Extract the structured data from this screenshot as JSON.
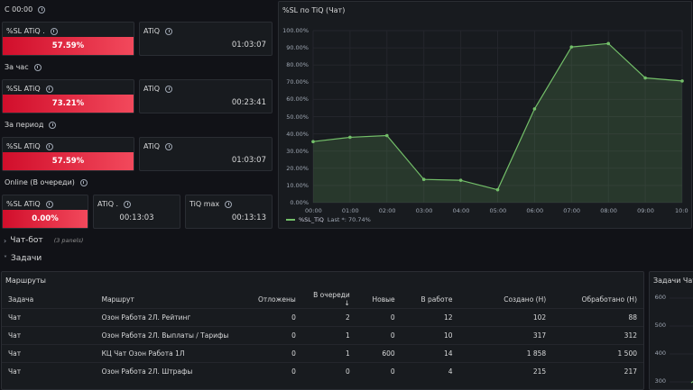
{
  "row1": {
    "title": "С 00:00",
    "sl_label": "%SL ATiQ .",
    "sl_value": "57.59%",
    "atiq_label": "ATiQ",
    "atiq_value": "01:03:07"
  },
  "row2": {
    "title": "За час",
    "sl_label": "%SL ATiQ",
    "sl_value": "73.21%",
    "atiq_label": "ATiQ",
    "atiq_value": "00:23:41"
  },
  "row3": {
    "title": "За период",
    "sl_label": "%SL ATiQ",
    "sl_value": "57.59%",
    "atiq_label": "ATiQ",
    "atiq_value": "01:03:07"
  },
  "row4": {
    "title": "Online (В очереди)",
    "sl_label": "%SL ATiQ",
    "sl_value": "0.00%",
    "atiq_label": "ATiQ .",
    "atiq_value": "00:13:03",
    "max_label": "TiQ max",
    "max_value": "00:13:13"
  },
  "chart_panel": {
    "title": "%SL по TiQ (Чат)",
    "legend": "%SL_TiQ",
    "legend_last": "Last *: 70.74%"
  },
  "chart_data": {
    "type": "area",
    "x": [
      "00:00",
      "01:00",
      "02:00",
      "03:00",
      "04:00",
      "05:00",
      "06:00",
      "07:00",
      "08:00",
      "09:00",
      "10:0"
    ],
    "y_ticks": [
      "100.00%",
      "90.00%",
      "80.00%",
      "70.00%",
      "60.00%",
      "50.00%",
      "40.00%",
      "30.00%",
      "20.00%",
      "10.00%",
      "0.00%"
    ],
    "ylim": [
      0,
      100
    ],
    "series": [
      {
        "name": "%SL_TiQ",
        "color": "#73bf69",
        "values": [
          35.5,
          38.0,
          39.0,
          13.5,
          13.0,
          7.5,
          54.5,
          90.5,
          92.5,
          72.5,
          70.74
        ]
      }
    ],
    "grid": true
  },
  "sections": {
    "chatbot": "Чат-бот",
    "chatbot_sub": "(3 panels)",
    "tasks": "Задачи"
  },
  "routes_panel": {
    "title": "Маршруты",
    "columns": [
      "Задача",
      "Маршрут",
      "Отложены",
      "В очереди",
      "Новые",
      "В работе",
      "Создано (Н)",
      "Обработано (Н)"
    ],
    "sort_icon": "↓",
    "rows": [
      [
        "Чат",
        "Озон Работа 2Л. Рейтинг",
        "0",
        "2",
        "0",
        "12",
        "102",
        "88"
      ],
      [
        "Чат",
        "Озон Работа 2Л. Выплаты / Тарифы",
        "0",
        "1",
        "0",
        "10",
        "317",
        "312"
      ],
      [
        "Чат",
        "КЦ Чат Озон Работа 1Л",
        "0",
        "1",
        "600",
        "14",
        "1 858",
        "1 500"
      ],
      [
        "Чат",
        "Озон Работа 2Л. Штрафы",
        "0",
        "0",
        "0",
        "4",
        "215",
        "217"
      ]
    ]
  },
  "tasks_panel": {
    "title": "Задачи Чат",
    "y_ticks": [
      "600",
      "500",
      "400",
      "300"
    ]
  }
}
